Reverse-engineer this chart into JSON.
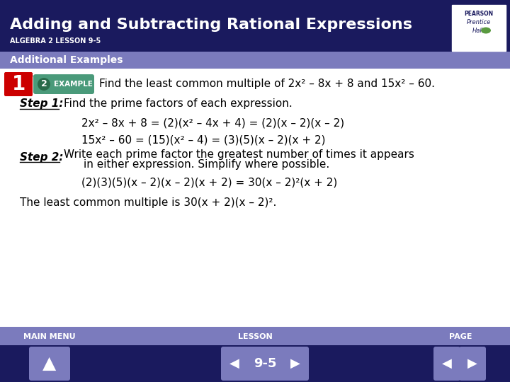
{
  "title": "Adding and Subtracting Rational Expressions",
  "subtitle": "ALGEBRA 2 LESSON 9-5",
  "section_header": "Additional Examples",
  "header_bg": "#1a1a5e",
  "section_bg": "#7b7bbd",
  "footer_nav_bg": "#1a1a5e",
  "body_bg": "#ffffff",
  "objective_number": "1",
  "example_number": "2",
  "example_label": "EXAMPLE",
  "example_bg": "#4a9a7a",
  "objective_bg": "#cc0000",
  "intro_text": "Find the least common multiple of 2x² – 8x + 8 and 15x² – 60.",
  "step1_label": "Step 1:",
  "step1_text": "Find the prime factors of each expression.",
  "eq1": "2x² – 8x + 8 = (2)(x² – 4x + 4) = (2)(x – 2)(x – 2)",
  "eq2": "15x² – 60 = (15)(x² – 4) = (3)(5)(x – 2)(x + 2)",
  "step2_label": "Step 2:",
  "step2_line1": "Write each prime factor the greatest number of times it appears",
  "step2_line2": "in either expression. Simplify where possible.",
  "eq3": "(2)(3)(5)(x – 2)(x – 2)(x + 2) = 30(x – 2)²(x + 2)",
  "conclusion": "The least common multiple is 30(x + 2)(x – 2)².",
  "footer_main_menu": "MAIN MENU",
  "footer_lesson": "LESSON",
  "footer_page": "PAGE",
  "footer_lesson_num": "9-5"
}
